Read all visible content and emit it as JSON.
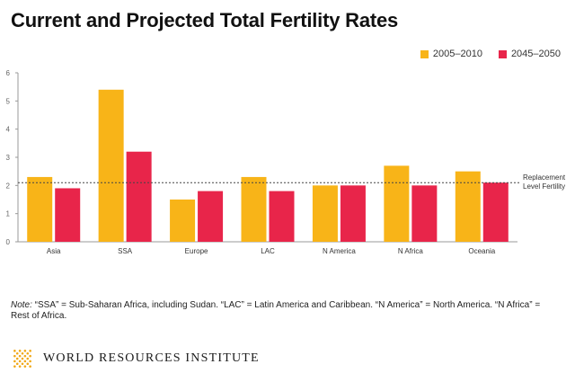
{
  "header": {
    "title": "Current and Projected Total Fertility Rates"
  },
  "colors": {
    "series_a": "#f8b418",
    "series_b": "#e8254a",
    "axis": "#999999",
    "text": "#333333",
    "logo": "#f0a818"
  },
  "chart_data": {
    "type": "bar",
    "title": "Current and Projected Total Fertility Rates",
    "categories": [
      "Asia",
      "SSA",
      "Europe",
      "LAC",
      "N America",
      "N Africa",
      "Oceania"
    ],
    "series": [
      {
        "name": "2005–2010",
        "values": [
          2.3,
          5.4,
          1.5,
          2.3,
          2.0,
          2.7,
          2.5
        ]
      },
      {
        "name": "2045–2050",
        "values": [
          1.9,
          3.2,
          1.8,
          1.8,
          2.0,
          2.0,
          2.1
        ]
      }
    ],
    "ylim": [
      0,
      6
    ],
    "yticks": [
      "0",
      "1",
      "2",
      "3",
      "4",
      "5",
      "6"
    ],
    "grid": false,
    "legend_position": "top-right",
    "reference_line": {
      "value": 2.1,
      "label_line1": "Replacement",
      "label_line2": "Level Fertility"
    }
  },
  "note": {
    "label": "Note:",
    "text": " “SSA” = Sub-Saharan Africa, including Sudan. “LAC” = Latin America and Caribbean. “N America” = North America. “N Africa” = Rest of Africa."
  },
  "footer": {
    "organization": "WORLD RESOURCES INSTITUTE"
  }
}
